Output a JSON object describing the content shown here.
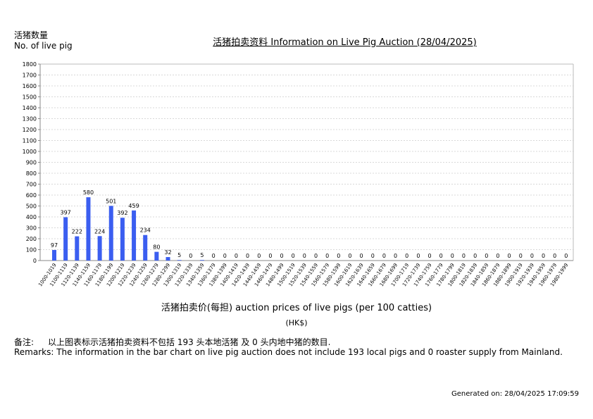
{
  "page": {
    "title": "活猪拍卖资料 Information on Live Pig Auction (28/04/2025)",
    "y_axis_label_cn": "活猪数量",
    "y_axis_label_en": "No. of live pig",
    "x_axis_label": "活猪拍卖价(每担) auction prices of live pigs (per 100 catties)",
    "unit": "(HK$)",
    "remarks_cn_label": "备注:",
    "remarks_cn": "以上图表标示活猪拍卖资料不包括 193 头本地活猪 及 0 头内地中猪的数目.",
    "remarks_en": "Remarks: The information in the bar chart on live pig auction does not include 193 local pigs and 0 roaster supply from Mainland.",
    "generated": "Generated on: 28/04/2025 17:09:59",
    "bar_color": "#3b5ef0"
  },
  "chart_data": {
    "type": "bar",
    "title": "活猪拍卖资料 Information on Live Pig Auction (28/04/2025)",
    "xlabel": "活猪拍卖价(每担) auction prices of live pigs (per 100 catties) (HK$)",
    "ylabel": "活猪数量 No. of live pig",
    "ylim": [
      0,
      1800
    ],
    "yticks": [
      0,
      100,
      200,
      300,
      400,
      500,
      600,
      700,
      800,
      900,
      1000,
      1100,
      1200,
      1300,
      1400,
      1500,
      1600,
      1700,
      1800
    ],
    "grid": true,
    "legend": "none",
    "categories": [
      "1000-1019",
      "1100-1119",
      "1120-1139",
      "1140-1159",
      "1160-1179",
      "1180-1199",
      "1200-1219",
      "1220-1239",
      "1240-1259",
      "1260-1279",
      "1280-1299",
      "1300-1319",
      "1320-1339",
      "1340-1359",
      "1360-1379",
      "1380-1399",
      "1400-1419",
      "1420-1439",
      "1440-1459",
      "1460-1479",
      "1480-1499",
      "1500-1519",
      "1520-1539",
      "1540-1559",
      "1560-1579",
      "1580-1599",
      "1600-1619",
      "1620-1639",
      "1640-1659",
      "1660-1679",
      "1680-1699",
      "1700-1719",
      "1720-1739",
      "1740-1759",
      "1760-1779",
      "1780-1799",
      "1800-1819",
      "1820-1839",
      "1840-1859",
      "1860-1879",
      "1880-1899",
      "1900-1919",
      "1920-1939",
      "1940-1959",
      "1960-1979",
      "1980-1999"
    ],
    "values": [
      97,
      397,
      222,
      580,
      224,
      501,
      392,
      459,
      234,
      80,
      32,
      5,
      0,
      5,
      0,
      0,
      0,
      0,
      0,
      0,
      0,
      0,
      0,
      0,
      0,
      0,
      0,
      0,
      0,
      0,
      0,
      0,
      0,
      0,
      0,
      0,
      0,
      0,
      0,
      0,
      0,
      0,
      0,
      0,
      0,
      0
    ]
  }
}
